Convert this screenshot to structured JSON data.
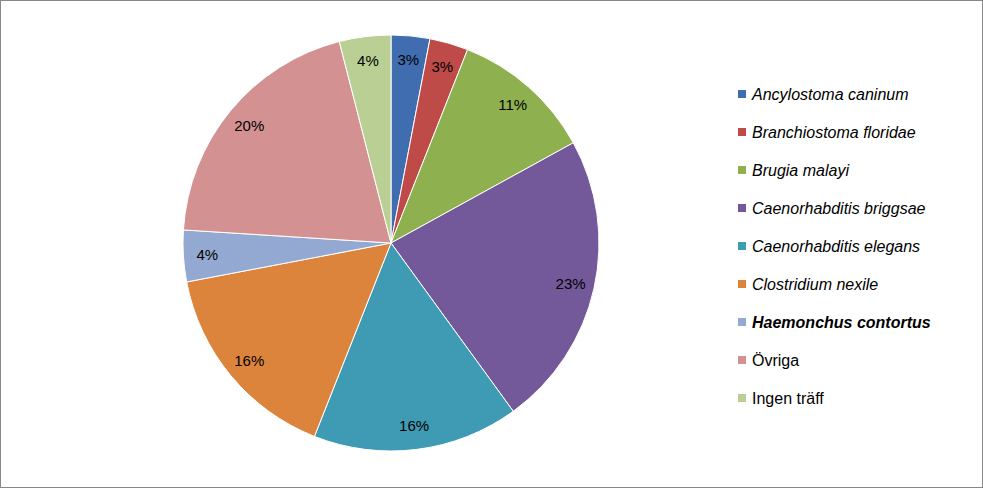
{
  "chart_data": {
    "type": "pie",
    "categories": [
      "Ancylostoma caninum",
      "Branchiostoma floridae",
      "Brugia malayi",
      "Caenorhabditis briggsae",
      "Caenorhabditis elegans",
      "Clostridium nexile",
      "Haemonchus contortus",
      "Övriga",
      "Ingen träff"
    ],
    "values": [
      3,
      3,
      11,
      23,
      16,
      16,
      4,
      20,
      4
    ],
    "value_labels": [
      "3%",
      "3%",
      "11%",
      "23%",
      "16%",
      "16%",
      "4%",
      "20%",
      "4%"
    ],
    "colors": [
      "#3f6db0",
      "#be4b48",
      "#8fb04f",
      "#73599a",
      "#3f9ab3",
      "#dd843c",
      "#93a9d1",
      "#d39291",
      "#b9cf94"
    ],
    "data_labels": true,
    "legend": "right"
  }
}
